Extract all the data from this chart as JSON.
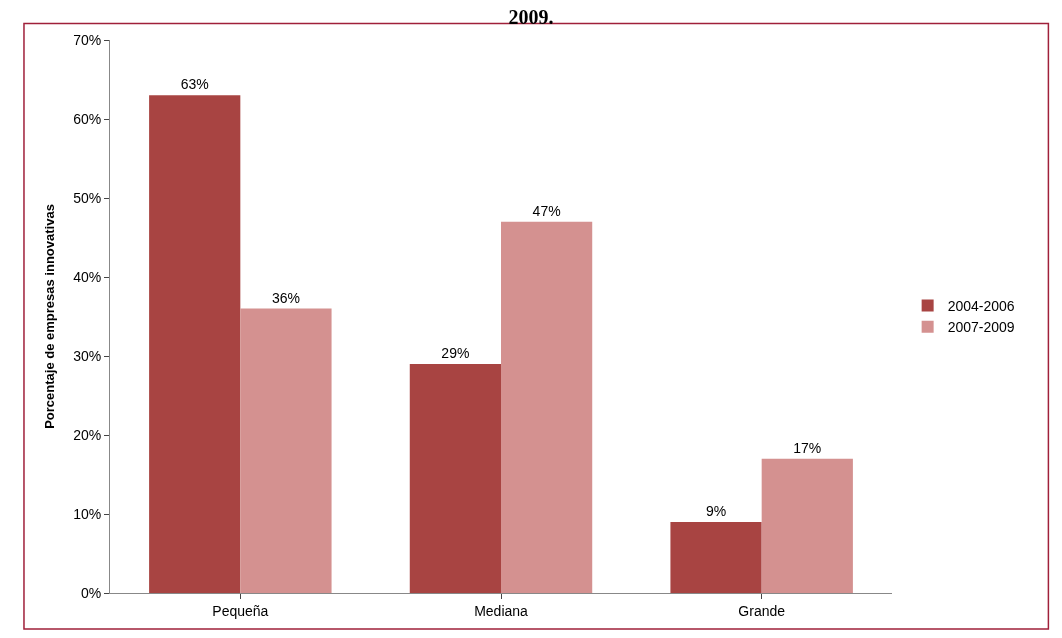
{
  "chart_data": {
    "type": "bar",
    "title": "2009.",
    "ylabel": "Porcentaje de empresas innovativas",
    "categories": [
      "Pequeña",
      "Mediana",
      "Grande"
    ],
    "series": [
      {
        "name": "2004-2006",
        "color": "#a84442",
        "values": [
          63,
          29,
          9
        ],
        "value_labels": [
          "63%",
          "29%",
          "9%"
        ]
      },
      {
        "name": "2007-2009",
        "color": "#d49190",
        "values": [
          36,
          47,
          17
        ],
        "value_labels": [
          "36%",
          "47%",
          "17%"
        ]
      }
    ],
    "ylim": [
      0,
      70
    ],
    "yticks": [
      {
        "value": 0,
        "label": "0%"
      },
      {
        "value": 10,
        "label": "10%"
      },
      {
        "value": 20,
        "label": "20%"
      },
      {
        "value": 30,
        "label": "30%"
      },
      {
        "value": 40,
        "label": "40%"
      },
      {
        "value": 50,
        "label": "50%"
      },
      {
        "value": 60,
        "label": "60%"
      },
      {
        "value": 70,
        "label": "70%"
      }
    ],
    "legend": "right"
  }
}
